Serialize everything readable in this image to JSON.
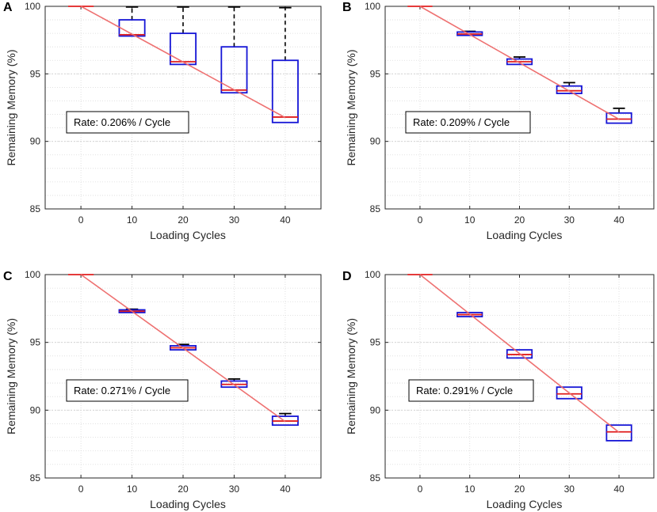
{
  "chart_data": [
    {
      "panel": "A",
      "type": "box",
      "xlabel": "Loading Cycles",
      "ylabel": "Remaining Memory (%)",
      "categories": [
        "0",
        "10",
        "20",
        "30",
        "40"
      ],
      "x": [
        0,
        10,
        20,
        30,
        40
      ],
      "ylim": [
        85,
        100
      ],
      "yticks": [
        "85",
        "90",
        "95",
        "100"
      ],
      "grid": true,
      "boxes": [
        {
          "x": 0,
          "q1": 100,
          "median": 100,
          "q3": 100,
          "whisker_low": 100,
          "whisker_high": 100
        },
        {
          "x": 10,
          "q1": 97.8,
          "median": 97.9,
          "q3": 99,
          "whisker_low": 97.8,
          "whisker_high": 99.95
        },
        {
          "x": 20,
          "q1": 95.7,
          "median": 95.9,
          "q3": 98,
          "whisker_low": 95.7,
          "whisker_high": 99.95
        },
        {
          "x": 30,
          "q1": 93.6,
          "median": 93.8,
          "q3": 97,
          "whisker_low": 93.6,
          "whisker_high": 99.95
        },
        {
          "x": 40,
          "q1": 91.4,
          "median": 91.8,
          "q3": 96,
          "whisker_low": 91.4,
          "whisker_high": 99.9
        }
      ],
      "fit_line": {
        "x": [
          0,
          40
        ],
        "y": [
          100,
          91.76
        ]
      },
      "annotation": "Rate: 0.206% / Cycle"
    },
    {
      "panel": "B",
      "type": "box",
      "xlabel": "Loading Cycles",
      "ylabel": "Remaining Memory (%)",
      "categories": [
        "0",
        "10",
        "20",
        "30",
        "40"
      ],
      "x": [
        0,
        10,
        20,
        30,
        40
      ],
      "ylim": [
        85,
        100
      ],
      "yticks": [
        "85",
        "90",
        "95",
        "100"
      ],
      "grid": true,
      "boxes": [
        {
          "x": 0,
          "q1": 100,
          "median": 100,
          "q3": 100,
          "whisker_low": 100,
          "whisker_high": 100
        },
        {
          "x": 10,
          "q1": 97.85,
          "median": 97.95,
          "q3": 98.1,
          "whisker_low": 97.85,
          "whisker_high": 98.15
        },
        {
          "x": 20,
          "q1": 95.7,
          "median": 95.9,
          "q3": 96.1,
          "whisker_low": 95.7,
          "whisker_high": 96.25
        },
        {
          "x": 30,
          "q1": 93.55,
          "median": 93.75,
          "q3": 94.1,
          "whisker_low": 93.55,
          "whisker_high": 94.35
        },
        {
          "x": 40,
          "q1": 91.35,
          "median": 91.65,
          "q3": 92.1,
          "whisker_low": 91.35,
          "whisker_high": 92.45
        }
      ],
      "fit_line": {
        "x": [
          0,
          40
        ],
        "y": [
          100,
          91.64
        ]
      },
      "annotation": "Rate: 0.209% / Cycle"
    },
    {
      "panel": "C",
      "type": "box",
      "xlabel": "Loading Cycles",
      "ylabel": "Remaining Memory (%)",
      "categories": [
        "0",
        "10",
        "20",
        "30",
        "40"
      ],
      "x": [
        0,
        10,
        20,
        30,
        40
      ],
      "ylim": [
        85,
        100
      ],
      "yticks": [
        "85",
        "90",
        "95",
        "100"
      ],
      "grid": true,
      "boxes": [
        {
          "x": 0,
          "q1": 100,
          "median": 100,
          "q3": 100,
          "whisker_low": 100,
          "whisker_high": 100
        },
        {
          "x": 10,
          "q1": 97.2,
          "median": 97.3,
          "q3": 97.4,
          "whisker_low": 97.2,
          "whisker_high": 97.45
        },
        {
          "x": 20,
          "q1": 94.45,
          "median": 94.6,
          "q3": 94.75,
          "whisker_low": 94.45,
          "whisker_high": 94.85
        },
        {
          "x": 30,
          "q1": 91.7,
          "median": 91.9,
          "q3": 92.15,
          "whisker_low": 91.7,
          "whisker_high": 92.3
        },
        {
          "x": 40,
          "q1": 88.9,
          "median": 89.2,
          "q3": 89.55,
          "whisker_low": 88.9,
          "whisker_high": 89.75
        }
      ],
      "fit_line": {
        "x": [
          0,
          40
        ],
        "y": [
          100,
          89.16
        ]
      },
      "annotation": "Rate: 0.271% / Cycle"
    },
    {
      "panel": "D",
      "type": "box",
      "xlabel": "Loading Cycles",
      "ylabel": "Remaining Memory (%)",
      "categories": [
        "0",
        "10",
        "20",
        "30",
        "40"
      ],
      "x": [
        0,
        10,
        20,
        30,
        40
      ],
      "ylim": [
        85,
        100
      ],
      "yticks": [
        "85",
        "90",
        "95",
        "100"
      ],
      "grid": true,
      "boxes": [
        {
          "x": 0,
          "q1": 100,
          "median": 100,
          "q3": 100,
          "whisker_low": 100,
          "whisker_high": 100
        },
        {
          "x": 10,
          "q1": 96.9,
          "median": 97.05,
          "q3": 97.2,
          "whisker_low": 96.9,
          "whisker_high": 97.2
        },
        {
          "x": 20,
          "q1": 93.85,
          "median": 94.1,
          "q3": 94.45,
          "whisker_low": 93.85,
          "whisker_high": 94.45
        },
        {
          "x": 30,
          "q1": 90.85,
          "median": 91.2,
          "q3": 91.7,
          "whisker_low": 90.85,
          "whisker_high": 91.7
        },
        {
          "x": 40,
          "q1": 87.75,
          "median": 88.4,
          "q3": 88.9,
          "whisker_low": 87.75,
          "whisker_high": 88.9
        }
      ],
      "fit_line": {
        "x": [
          0,
          40
        ],
        "y": [
          100,
          88.36
        ]
      },
      "annotation": "Rate: 0.291% / Cycle"
    }
  ],
  "colors": {
    "box": "#1515d6",
    "median": "#e01e1e",
    "whisker_cap": "#000000",
    "fit_line": "#ee6a6a",
    "grid": "#d9d9d9",
    "axis": "#262626"
  }
}
